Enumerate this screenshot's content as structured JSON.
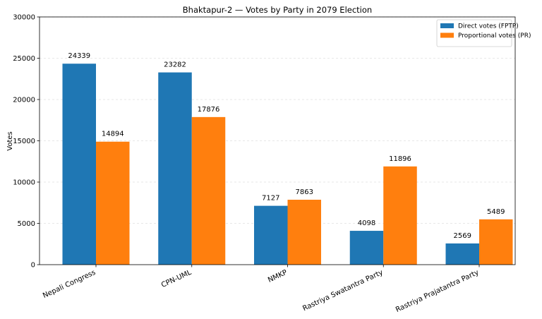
{
  "chart_data": {
    "type": "bar",
    "title": "Bhaktapur-2 — Votes by Party in 2079 Election",
    "xlabel": "",
    "ylabel": "Votes",
    "ylim": [
      0,
      30000
    ],
    "yticks": [
      0,
      5000,
      10000,
      15000,
      20000,
      25000,
      30000
    ],
    "grid": true,
    "legend_placement": "top-right",
    "categories": [
      "Nepali Congress",
      "CPN-UML",
      "NMKP",
      "Rastriya Swatantra Party",
      "Rastriya Prajatantra Party"
    ],
    "series": [
      {
        "name": "Direct votes (FPTP)",
        "color": "#1f77b4",
        "values": [
          24339,
          23282,
          7127,
          4098,
          2569
        ]
      },
      {
        "name": "Proportional votes (PR)",
        "color": "#ff7f0e",
        "values": [
          14894,
          17876,
          7863,
          11896,
          5489
        ]
      }
    ]
  }
}
